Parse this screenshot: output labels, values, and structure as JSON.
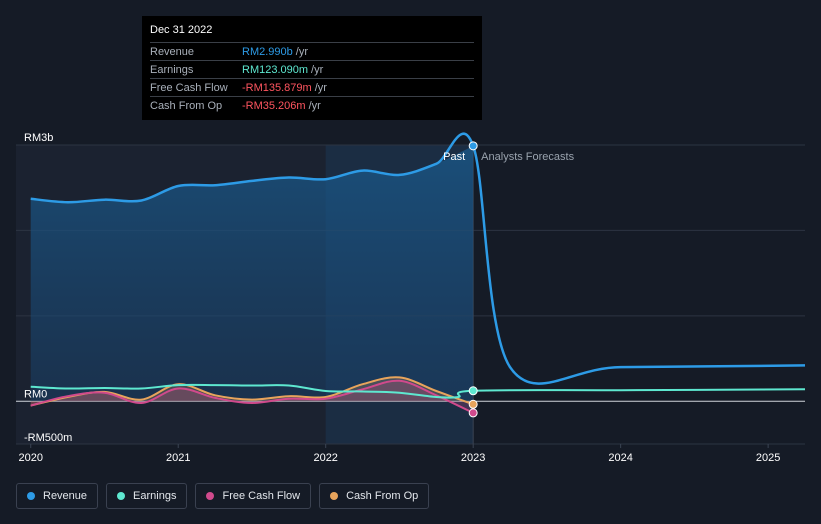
{
  "tooltip": {
    "date": "Dec 31 2022",
    "rows": [
      {
        "label": "Revenue",
        "value": "RM2.990b",
        "unit": "/yr",
        "color": "#2d9be6"
      },
      {
        "label": "Earnings",
        "value": "RM123.090m",
        "unit": "/yr",
        "color": "#5ee8d0"
      },
      {
        "label": "Free Cash Flow",
        "value": "-RM135.879m",
        "unit": "/yr",
        "color": "#ff5560"
      },
      {
        "label": "Cash From Op",
        "value": "-RM35.206m",
        "unit": "/yr",
        "color": "#ff5560"
      }
    ]
  },
  "labels": {
    "past": "Past",
    "forecast": "Analysts Forecasts"
  },
  "chart_data": {
    "type": "line",
    "ylim": [
      -500,
      3000
    ],
    "yticks": [
      {
        "value": 3000,
        "label": "RM3b"
      },
      {
        "value": 0,
        "label": "RM0"
      },
      {
        "value": -500,
        "label": "-RM500m"
      }
    ],
    "xlim": [
      2019.9,
      2025.25
    ],
    "xticks": [
      {
        "value": 2020,
        "label": "2020"
      },
      {
        "value": 2021,
        "label": "2021"
      },
      {
        "value": 2022,
        "label": "2022"
      },
      {
        "value": 2023,
        "label": "2023"
      },
      {
        "value": 2024,
        "label": "2024"
      },
      {
        "value": 2025,
        "label": "2025"
      }
    ],
    "divider": 2023,
    "series": [
      {
        "name": "Revenue",
        "color": "#2d9be6",
        "x": [
          2020.0,
          2020.25,
          2020.5,
          2020.75,
          2021.0,
          2021.25,
          2021.5,
          2021.75,
          2022.0,
          2022.25,
          2022.5,
          2022.75,
          2023.0,
          2023.25,
          2024.0,
          2025.25
        ],
        "y": [
          2370,
          2330,
          2360,
          2350,
          2520,
          2530,
          2580,
          2620,
          2600,
          2700,
          2650,
          2780,
          2990,
          400,
          400,
          420
        ]
      },
      {
        "name": "Earnings",
        "color": "#5ee8d0",
        "x": [
          2020.0,
          2020.25,
          2020.5,
          2020.75,
          2021.0,
          2021.25,
          2021.5,
          2021.75,
          2022.0,
          2022.25,
          2022.5,
          2022.75,
          2022.9,
          2023.0,
          2024.0,
          2025.25
        ],
        "y": [
          170,
          150,
          155,
          150,
          190,
          190,
          185,
          185,
          120,
          115,
          100,
          50,
          50,
          123,
          130,
          140
        ]
      },
      {
        "name": "Free Cash Flow",
        "color": "#d04a8c",
        "x": [
          2020.0,
          2020.25,
          2020.5,
          2020.75,
          2021.0,
          2021.25,
          2021.5,
          2021.75,
          2022.0,
          2022.25,
          2022.5,
          2022.75,
          2023.0
        ],
        "y": [
          -50,
          60,
          100,
          -20,
          150,
          40,
          -20,
          30,
          30,
          140,
          240,
          70,
          -136
        ]
      },
      {
        "name": "Cash From Op",
        "color": "#e8a45c",
        "x": [
          2020.0,
          2020.25,
          2020.5,
          2020.75,
          2021.0,
          2021.25,
          2021.5,
          2021.75,
          2022.0,
          2022.25,
          2022.5,
          2022.75,
          2023.0
        ],
        "y": [
          -50,
          50,
          110,
          20,
          200,
          70,
          20,
          60,
          50,
          200,
          280,
          120,
          -35
        ]
      }
    ]
  }
}
